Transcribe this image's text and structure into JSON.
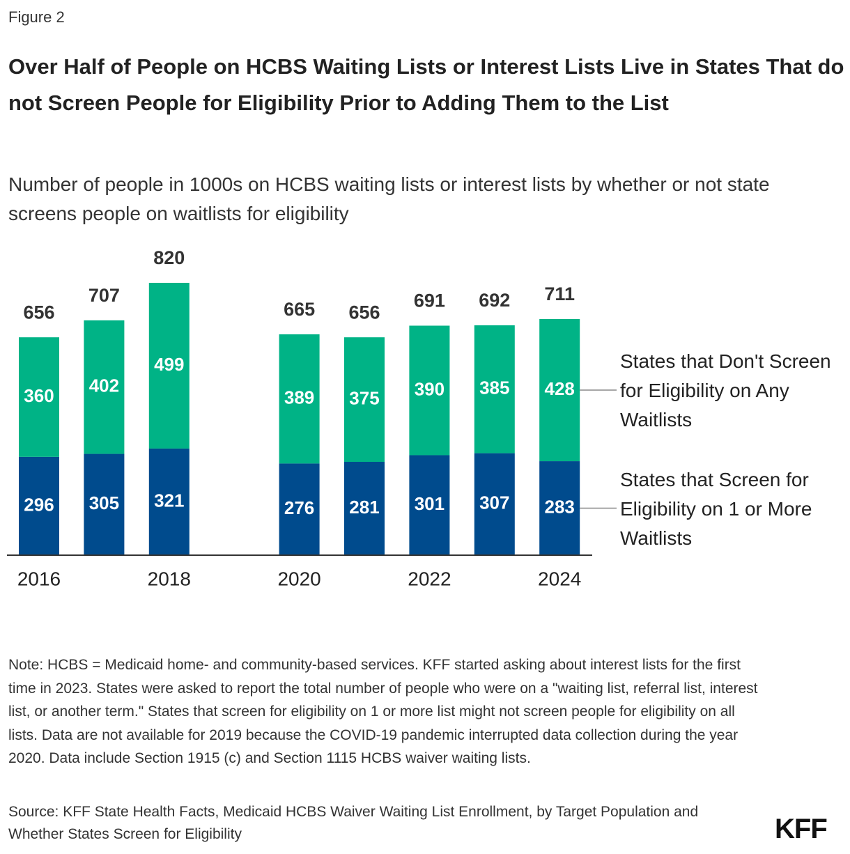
{
  "figure_label": "Figure 2",
  "chart_data": {
    "type": "stacked-bar",
    "title": "Over Half of People on HCBS Waiting Lists or Interest Lists Live in States That do not Screen People for Eligibility Prior to Adding Them to the List",
    "subtitle": "Number of people in 1000s on HCBS waiting lists or interest lists by whether or not state screens people on waitlists for eligibility",
    "categories": [
      "2016",
      null,
      "2018",
      null,
      "2020",
      null,
      "2022",
      null,
      "2024"
    ],
    "series": [
      {
        "name": "States that Screen for Eligibility on 1 or More Waitlists",
        "color": "#004b8d",
        "values": [
          296,
          305,
          321,
          null,
          276,
          281,
          301,
          307,
          283
        ]
      },
      {
        "name": "States that Don't Screen for Eligibility on Any Waitlists",
        "color": "#00b386",
        "values": [
          360,
          402,
          499,
          null,
          389,
          375,
          390,
          385,
          428
        ]
      }
    ],
    "totals": [
      656,
      707,
      820,
      null,
      665,
      656,
      691,
      692,
      711
    ]
  },
  "note": "Note: HCBS = Medicaid home- and community-based services. KFF started asking about interest lists for the first time in 2023. States were asked to report the total number of people who were on a \"waiting list, referral list, interest list, or another term.\" States that screen for eligibility on 1 or more list might not screen people for eligibility on all lists. Data are not available for 2019 because the COVID-19 pandemic interrupted data collection during the year 2020. Data include Section 1915 (c) and Section 1115 HCBS waiver waiting lists.",
  "source": "Source: KFF State Health Facts, Medicaid HCBS Waiver Waiting List Enrollment, by Target Population and Whether States Screen for Eligibility",
  "logo": "KFF"
}
